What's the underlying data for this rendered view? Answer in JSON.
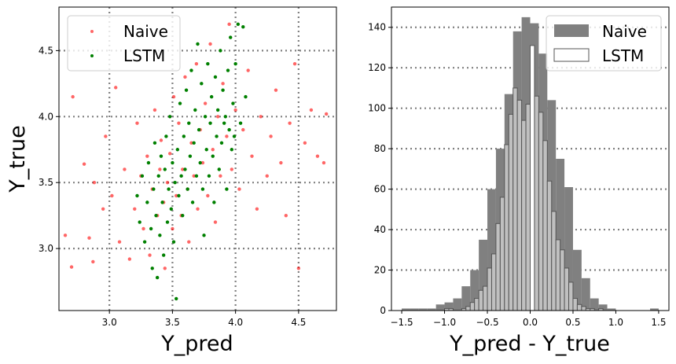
{
  "chart_data": [
    {
      "type": "scatter",
      "xlabel": "Y_pred",
      "ylabel": "Y_true",
      "xlim": [
        2.6,
        4.8
      ],
      "ylim": [
        2.53,
        4.83
      ],
      "xticks": [
        3.0,
        3.5,
        4.0,
        4.5
      ],
      "xtick_labels": [
        "3.0",
        "3.5",
        "4.0",
        "4.5"
      ],
      "yticks": [
        3.0,
        3.5,
        4.0,
        4.5
      ],
      "ytick_labels": [
        "3.0",
        "3.5",
        "4.0",
        "4.5"
      ],
      "grid": true,
      "legend_position": "top-left",
      "series": [
        {
          "name": "Naive",
          "color": "#ff0000",
          "points": [
            [
              2.65,
              3.1
            ],
            [
              2.7,
              2.86
            ],
            [
              2.71,
              4.15
            ],
            [
              2.8,
              3.64
            ],
            [
              2.84,
              3.08
            ],
            [
              2.87,
              2.9
            ],
            [
              2.88,
              3.5
            ],
            [
              2.95,
              3.3
            ],
            [
              2.97,
              3.85
            ],
            [
              3.02,
              3.4
            ],
            [
              3.05,
              4.22
            ],
            [
              3.08,
              3.05
            ],
            [
              3.12,
              3.6
            ],
            [
              3.16,
              2.92
            ],
            [
              3.2,
              3.3
            ],
            [
              3.22,
              3.95
            ],
            [
              3.25,
              3.55
            ],
            [
              3.27,
              3.15
            ],
            [
              3.3,
              3.7
            ],
            [
              3.32,
              2.95
            ],
            [
              3.34,
              3.45
            ],
            [
              3.36,
              4.05
            ],
            [
              3.38,
              3.25
            ],
            [
              3.4,
              3.6
            ],
            [
              3.41,
              3.82
            ],
            [
              3.43,
              3.35
            ],
            [
              3.44,
              2.85
            ],
            [
              3.46,
              3.5
            ],
            [
              3.48,
              3.72
            ],
            [
              3.5,
              3.15
            ],
            [
              3.51,
              4.15
            ],
            [
              3.53,
              3.4
            ],
            [
              3.55,
              3.95
            ],
            [
              3.57,
              3.25
            ],
            [
              3.58,
              3.6
            ],
            [
              3.6,
              4.3
            ],
            [
              3.62,
              3.45
            ],
            [
              3.63,
              3.05
            ],
            [
              3.65,
              3.8
            ],
            [
              3.67,
              3.55
            ],
            [
              3.69,
              4.4
            ],
            [
              3.7,
              3.3
            ],
            [
              3.72,
              3.9
            ],
            [
              3.74,
              3.65
            ],
            [
              3.76,
              4.1
            ],
            [
              3.78,
              3.4
            ],
            [
              3.8,
              4.55
            ],
            [
              3.82,
              3.75
            ],
            [
              3.84,
              3.2
            ],
            [
              3.86,
              4.0
            ],
            [
              3.88,
              3.55
            ],
            [
              3.9,
              4.25
            ],
            [
              3.93,
              3.85
            ],
            [
              3.95,
              4.7
            ],
            [
              3.97,
              3.6
            ],
            [
              4.0,
              4.05
            ],
            [
              4.03,
              3.45
            ],
            [
              4.06,
              3.9
            ],
            [
              4.1,
              4.35
            ],
            [
              4.13,
              3.7
            ],
            [
              4.17,
              3.3
            ],
            [
              4.2,
              4.0
            ],
            [
              4.25,
              3.55
            ],
            [
              4.28,
              3.85
            ],
            [
              4.32,
              4.2
            ],
            [
              4.36,
              3.65
            ],
            [
              4.4,
              3.25
            ],
            [
              4.43,
              3.95
            ],
            [
              4.47,
              4.4
            ],
            [
              4.5,
              2.85
            ],
            [
              4.55,
              3.8
            ],
            [
              4.6,
              4.05
            ],
            [
              4.65,
              3.7
            ],
            [
              4.7,
              3.65
            ],
            [
              4.72,
              4.02
            ]
          ]
        },
        {
          "name": "LSTM",
          "color": "#008000",
          "points": [
            [
              3.22,
              3.4
            ],
            [
              3.24,
              3.2
            ],
            [
              3.26,
              3.55
            ],
            [
              3.28,
              3.05
            ],
            [
              3.3,
              3.35
            ],
            [
              3.31,
              3.65
            ],
            [
              3.33,
              3.15
            ],
            [
              3.34,
              2.85
            ],
            [
              3.35,
              3.45
            ],
            [
              3.36,
              3.8
            ],
            [
              3.37,
              3.25
            ],
            [
              3.38,
              2.78
            ],
            [
              3.39,
              3.55
            ],
            [
              3.4,
              3.1
            ],
            [
              3.41,
              3.7
            ],
            [
              3.42,
              3.35
            ],
            [
              3.43,
              2.95
            ],
            [
              3.44,
              3.6
            ],
            [
              3.45,
              3.85
            ],
            [
              3.46,
              3.2
            ],
            [
              3.47,
              3.45
            ],
            [
              3.48,
              4.0
            ],
            [
              3.49,
              3.3
            ],
            [
              3.5,
              3.65
            ],
            [
              3.51,
              3.05
            ],
            [
              3.52,
              3.5
            ],
            [
              3.53,
              2.62
            ],
            [
              3.54,
              3.75
            ],
            [
              3.55,
              3.4
            ],
            [
              3.56,
              4.1
            ],
            [
              3.57,
              3.55
            ],
            [
              3.58,
              3.25
            ],
            [
              3.59,
              3.85
            ],
            [
              3.6,
              3.6
            ],
            [
              3.61,
              4.2
            ],
            [
              3.62,
              3.45
            ],
            [
              3.63,
              3.95
            ],
            [
              3.64,
              3.7
            ],
            [
              3.65,
              4.35
            ],
            [
              3.66,
              3.35
            ],
            [
              3.67,
              3.8
            ],
            [
              3.68,
              4.05
            ],
            [
              3.69,
              3.55
            ],
            [
              3.7,
              4.55
            ],
            [
              3.71,
              3.9
            ],
            [
              3.72,
              3.65
            ],
            [
              3.73,
              4.25
            ],
            [
              3.74,
              3.45
            ],
            [
              3.75,
              3.1
            ],
            [
              3.76,
              4.0
            ],
            [
              3.77,
              3.75
            ],
            [
              3.78,
              4.4
            ],
            [
              3.79,
              3.55
            ],
            [
              3.8,
              3.95
            ],
            [
              3.81,
              4.15
            ],
            [
              3.82,
              3.7
            ],
            [
              3.83,
              3.35
            ],
            [
              3.84,
              4.3
            ],
            [
              3.85,
              3.85
            ],
            [
              3.86,
              4.05
            ],
            [
              3.87,
              3.6
            ],
            [
              3.88,
              4.5
            ],
            [
              3.89,
              3.8
            ],
            [
              3.9,
              4.2
            ],
            [
              3.91,
              3.95
            ],
            [
              3.92,
              4.0
            ],
            [
              3.93,
              3.45
            ],
            [
              3.94,
              4.35
            ],
            [
              3.95,
              3.9
            ],
            [
              3.96,
              4.6
            ],
            [
              3.97,
              3.75
            ],
            [
              3.98,
              4.1
            ],
            [
              3.99,
              3.85
            ],
            [
              4.0,
              4.4
            ],
            [
              4.02,
              4.7
            ],
            [
              4.04,
              3.95
            ],
            [
              4.06,
              4.68
            ],
            [
              4.08,
              4.15
            ]
          ]
        }
      ]
    },
    {
      "type": "bar",
      "xlabel": "Y_pred - Y_true",
      "ylabel": "",
      "xlim": [
        -1.62,
        1.62
      ],
      "ylim": [
        0,
        150
      ],
      "xticks": [
        -1.5,
        -1.0,
        -0.5,
        0.0,
        0.5,
        1.0,
        1.5
      ],
      "xtick_labels": [
        "−1.5",
        "−1.0",
        "−0.5",
        "0.0",
        "0.5",
        "1.0",
        "1.5"
      ],
      "yticks": [
        0,
        20,
        40,
        60,
        80,
        100,
        120,
        140
      ],
      "ytick_labels": [
        "0",
        "20",
        "40",
        "60",
        "80",
        "100",
        "120",
        "140"
      ],
      "grid": "horizontal",
      "legend_position": "top-right",
      "series": [
        {
          "name": "Naive",
          "style": "filled",
          "color": "#808080",
          "bin_width": 0.1,
          "bin_left_edges": [
            -1.5,
            -1.4,
            -1.3,
            -1.2,
            -1.1,
            -1.0,
            -0.9,
            -0.8,
            -0.7,
            -0.6,
            -0.5,
            -0.4,
            -0.3,
            -0.2,
            -0.1,
            0.0,
            0.1,
            0.2,
            0.3,
            0.4,
            0.5,
            0.6,
            0.7,
            0.8,
            0.9,
            1.0,
            1.1,
            1.2,
            1.3,
            1.4
          ],
          "values": [
            1,
            1,
            1,
            1,
            3,
            4,
            6,
            12,
            20,
            35,
            60,
            80,
            107,
            138,
            145,
            142,
            127,
            104,
            75,
            61,
            30,
            16,
            6,
            3,
            1,
            0,
            0,
            0,
            0,
            1
          ]
        },
        {
          "name": "LSTM",
          "style": "outline",
          "color": "#c0c0c0",
          "bin_width": 0.05,
          "bin_left_edges": [
            -1.0,
            -0.95,
            -0.9,
            -0.85,
            -0.8,
            -0.75,
            -0.7,
            -0.65,
            -0.6,
            -0.55,
            -0.5,
            -0.45,
            -0.4,
            -0.35,
            -0.3,
            -0.25,
            -0.2,
            -0.15,
            -0.1,
            -0.05,
            0.0,
            0.05,
            0.1,
            0.15,
            0.2,
            0.25,
            0.3,
            0.35,
            0.4,
            0.45,
            0.5,
            0.55,
            0.6,
            0.65,
            0.7,
            0.75,
            0.8,
            0.85
          ],
          "values": [
            1,
            1,
            0,
            0,
            1,
            2,
            4,
            6,
            10,
            12,
            21,
            28,
            43,
            56,
            82,
            97,
            110,
            104,
            94,
            102,
            131,
            106,
            98,
            84,
            64,
            49,
            35,
            30,
            21,
            14,
            6,
            3,
            2,
            1,
            1,
            0,
            1,
            0
          ]
        }
      ]
    }
  ]
}
